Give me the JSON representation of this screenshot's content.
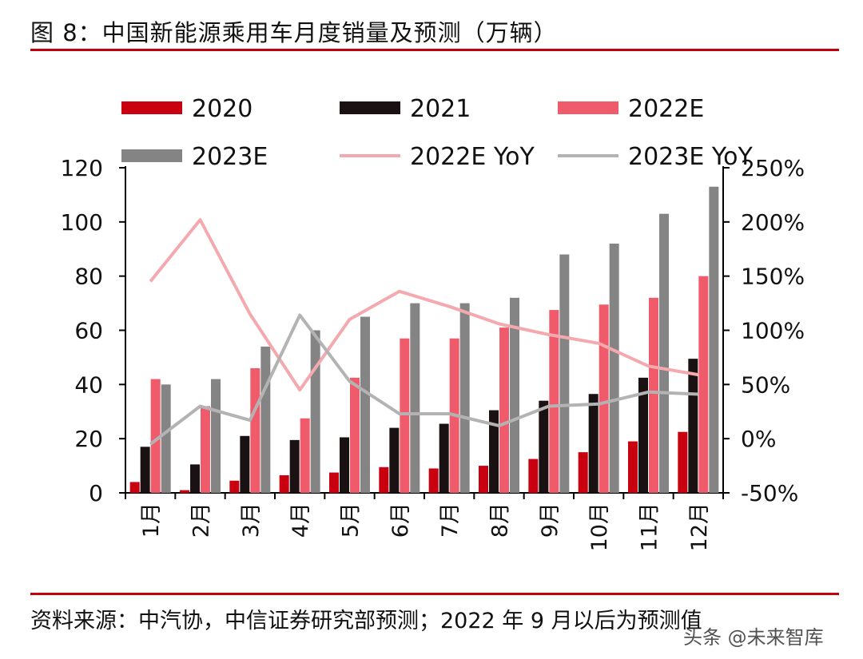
{
  "figure": {
    "title": "图 8：中国新能源乘用车月度销量及预测（万辆）",
    "source": "资料来源：中汽协，中信证券研究部预测；2022 年 9 月以后为预测值",
    "watermark": "头条 @未来智库"
  },
  "chart_data": {
    "type": "bar",
    "title": "",
    "categories": [
      "1月",
      "2月",
      "3月",
      "4月",
      "5月",
      "6月",
      "7月",
      "8月",
      "9月",
      "10月",
      "11月",
      "12月"
    ],
    "series": [
      {
        "name": "2020",
        "type": "bar",
        "axis": "left",
        "color": "#c9000f",
        "values": [
          4,
          1,
          4.5,
          6.5,
          7.5,
          9.5,
          9,
          10,
          12.5,
          15,
          19,
          22.5
        ]
      },
      {
        "name": "2021",
        "type": "bar",
        "axis": "left",
        "color": "#1a1212",
        "values": [
          17,
          10.5,
          21,
          19.5,
          20.5,
          24,
          25.5,
          30.5,
          34,
          36.5,
          42.5,
          49.5
        ]
      },
      {
        "name": "2022E",
        "type": "bar",
        "axis": "left",
        "color": "#ef5b6a",
        "values": [
          42,
          32,
          46,
          27.5,
          42.5,
          57,
          57,
          61,
          67.5,
          69.5,
          72,
          80
        ]
      },
      {
        "name": "2023E",
        "type": "bar",
        "axis": "left",
        "color": "#848484",
        "values": [
          40,
          42,
          54,
          60,
          65,
          70,
          70,
          72,
          88,
          92,
          103,
          113
        ]
      },
      {
        "name": "2022E YoY",
        "type": "line",
        "axis": "right",
        "color": "#f4a9ae",
        "values": [
          145,
          202,
          115,
          45,
          110,
          136,
          122,
          106,
          96,
          88,
          67,
          59
        ]
      },
      {
        "name": "2023E YoY",
        "type": "line",
        "axis": "right",
        "color": "#b3b3b3",
        "values": [
          -5,
          30,
          17,
          114,
          53,
          23,
          23,
          12,
          30,
          32,
          43,
          41
        ]
      }
    ],
    "yAxisLeft": {
      "min": 0,
      "max": 120,
      "ticks": [
        "0",
        "20",
        "40",
        "60",
        "80",
        "100",
        "120"
      ]
    },
    "yAxisRight": {
      "min": -50,
      "max": 250,
      "ticks": [
        "-50%",
        "0%",
        "50%",
        "100%",
        "150%",
        "200%",
        "250%"
      ]
    },
    "xlabel": "",
    "ylabel": "",
    "legend": {
      "position": "top",
      "columns": 3
    }
  }
}
